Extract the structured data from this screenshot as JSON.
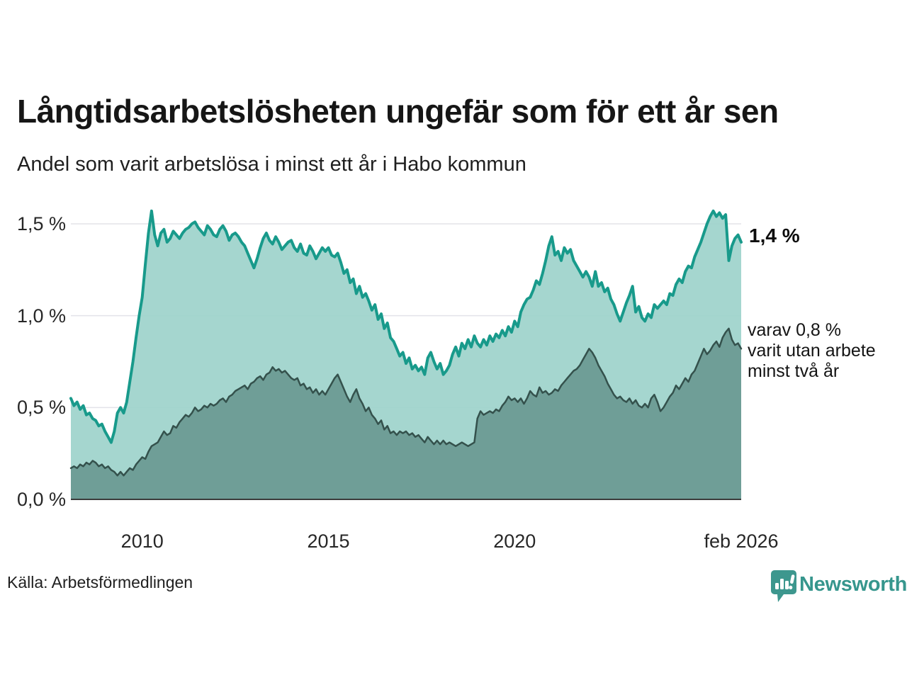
{
  "header": {
    "title": "Långtidsarbetslösheten ungefär som för ett år sen",
    "subtitle": "Andel som varit arbetslösa i minst ett år i Habo kommun"
  },
  "chart_data": {
    "type": "area",
    "unit": "%",
    "x_start": "2008-02",
    "x_end": "2026-02",
    "interval": "monthly",
    "ylim": [
      0,
      1.62
    ],
    "grid": true,
    "yticks": [
      {
        "label": "0,0 %",
        "value": 0
      },
      {
        "label": "0,5 %",
        "value": 0.5
      },
      {
        "label": "1,0 %",
        "value": 1.0
      },
      {
        "label": "1,5 %",
        "value": 1.5
      }
    ],
    "xticks": [
      {
        "label": "2010",
        "month_index": 23
      },
      {
        "label": "2015",
        "month_index": 83
      },
      {
        "label": "2020",
        "month_index": 143
      },
      {
        "label": "feb 2026",
        "month_index": 216
      }
    ],
    "series": [
      {
        "name": "Andel som varit arbetslösa i minst ett år",
        "line_color": "#189a8b",
        "fill_color": "#9ed3cb",
        "line_width": 4,
        "values": [
          0.55,
          0.51,
          0.53,
          0.49,
          0.51,
          0.46,
          0.47,
          0.44,
          0.43,
          0.4,
          0.41,
          0.37,
          0.34,
          0.31,
          0.37,
          0.47,
          0.5,
          0.47,
          0.53,
          0.64,
          0.75,
          0.88,
          1.0,
          1.1,
          1.28,
          1.45,
          1.57,
          1.44,
          1.38,
          1.45,
          1.47,
          1.4,
          1.42,
          1.46,
          1.44,
          1.42,
          1.45,
          1.47,
          1.48,
          1.5,
          1.51,
          1.48,
          1.46,
          1.44,
          1.49,
          1.47,
          1.44,
          1.43,
          1.47,
          1.49,
          1.46,
          1.41,
          1.44,
          1.45,
          1.43,
          1.4,
          1.38,
          1.34,
          1.3,
          1.26,
          1.31,
          1.37,
          1.42,
          1.45,
          1.41,
          1.39,
          1.43,
          1.4,
          1.36,
          1.38,
          1.4,
          1.41,
          1.37,
          1.35,
          1.39,
          1.34,
          1.33,
          1.38,
          1.35,
          1.31,
          1.34,
          1.37,
          1.35,
          1.37,
          1.33,
          1.32,
          1.34,
          1.29,
          1.23,
          1.25,
          1.18,
          1.2,
          1.12,
          1.16,
          1.1,
          1.12,
          1.08,
          1.03,
          1.06,
          0.98,
          1.01,
          0.93,
          0.96,
          0.88,
          0.86,
          0.82,
          0.78,
          0.8,
          0.74,
          0.77,
          0.71,
          0.73,
          0.7,
          0.72,
          0.68,
          0.77,
          0.8,
          0.75,
          0.71,
          0.74,
          0.68,
          0.7,
          0.73,
          0.79,
          0.83,
          0.78,
          0.85,
          0.82,
          0.87,
          0.83,
          0.89,
          0.85,
          0.83,
          0.87,
          0.84,
          0.89,
          0.86,
          0.9,
          0.88,
          0.92,
          0.89,
          0.94,
          0.91,
          0.97,
          0.94,
          1.02,
          1.06,
          1.09,
          1.1,
          1.14,
          1.19,
          1.17,
          1.23,
          1.3,
          1.38,
          1.43,
          1.33,
          1.35,
          1.3,
          1.37,
          1.34,
          1.36,
          1.3,
          1.27,
          1.24,
          1.21,
          1.24,
          1.21,
          1.16,
          1.24,
          1.16,
          1.18,
          1.13,
          1.15,
          1.09,
          1.06,
          1.01,
          0.97,
          1.02,
          1.07,
          1.11,
          1.16,
          1.02,
          1.05,
          0.99,
          0.97,
          1.01,
          0.99,
          1.06,
          1.04,
          1.06,
          1.08,
          1.06,
          1.12,
          1.11,
          1.17,
          1.2,
          1.18,
          1.24,
          1.27,
          1.26,
          1.32,
          1.36,
          1.4,
          1.45,
          1.5,
          1.54,
          1.57,
          1.54,
          1.56,
          1.53,
          1.55,
          1.3,
          1.38,
          1.42,
          1.44,
          1.4
        ]
      },
      {
        "name": "varav utan arbete minst två år",
        "line_color": "#34514c",
        "fill_color": "#6f9e97",
        "line_width": 2.5,
        "values": [
          0.17,
          0.18,
          0.17,
          0.19,
          0.18,
          0.2,
          0.19,
          0.21,
          0.2,
          0.18,
          0.19,
          0.17,
          0.18,
          0.16,
          0.15,
          0.13,
          0.15,
          0.13,
          0.15,
          0.17,
          0.16,
          0.19,
          0.21,
          0.23,
          0.22,
          0.26,
          0.29,
          0.3,
          0.31,
          0.34,
          0.37,
          0.35,
          0.36,
          0.4,
          0.39,
          0.42,
          0.44,
          0.46,
          0.45,
          0.47,
          0.5,
          0.48,
          0.49,
          0.51,
          0.5,
          0.52,
          0.51,
          0.52,
          0.54,
          0.55,
          0.53,
          0.56,
          0.57,
          0.59,
          0.6,
          0.61,
          0.62,
          0.6,
          0.63,
          0.64,
          0.66,
          0.67,
          0.65,
          0.68,
          0.69,
          0.72,
          0.7,
          0.71,
          0.69,
          0.7,
          0.68,
          0.66,
          0.65,
          0.66,
          0.62,
          0.63,
          0.6,
          0.61,
          0.58,
          0.6,
          0.57,
          0.59,
          0.57,
          0.6,
          0.63,
          0.66,
          0.68,
          0.64,
          0.6,
          0.56,
          0.53,
          0.57,
          0.6,
          0.55,
          0.52,
          0.48,
          0.5,
          0.46,
          0.44,
          0.41,
          0.43,
          0.38,
          0.4,
          0.36,
          0.37,
          0.35,
          0.37,
          0.36,
          0.37,
          0.35,
          0.36,
          0.34,
          0.35,
          0.33,
          0.31,
          0.34,
          0.32,
          0.3,
          0.32,
          0.3,
          0.32,
          0.3,
          0.31,
          0.3,
          0.29,
          0.3,
          0.31,
          0.3,
          0.29,
          0.3,
          0.31,
          0.44,
          0.48,
          0.46,
          0.47,
          0.48,
          0.47,
          0.49,
          0.48,
          0.51,
          0.53,
          0.56,
          0.54,
          0.55,
          0.53,
          0.55,
          0.52,
          0.55,
          0.59,
          0.57,
          0.56,
          0.61,
          0.58,
          0.59,
          0.57,
          0.58,
          0.6,
          0.59,
          0.62,
          0.64,
          0.66,
          0.68,
          0.7,
          0.71,
          0.73,
          0.76,
          0.79,
          0.82,
          0.8,
          0.77,
          0.73,
          0.7,
          0.67,
          0.63,
          0.6,
          0.57,
          0.55,
          0.56,
          0.54,
          0.53,
          0.55,
          0.52,
          0.54,
          0.51,
          0.5,
          0.52,
          0.5,
          0.55,
          0.57,
          0.53,
          0.48,
          0.5,
          0.53,
          0.56,
          0.58,
          0.62,
          0.6,
          0.63,
          0.66,
          0.64,
          0.68,
          0.7,
          0.74,
          0.78,
          0.82,
          0.79,
          0.81,
          0.84,
          0.86,
          0.83,
          0.88,
          0.91,
          0.93,
          0.87,
          0.84,
          0.85,
          0.82
        ]
      }
    ],
    "end_labels": {
      "primary": "1,4 %",
      "secondary": "varav 0,8 %\nvarit utan arbete\nminst två år"
    },
    "colors": {
      "grid": "#e3e3e9",
      "axis": "#3c3c3c",
      "brand_teal": "#36968d"
    }
  },
  "footer": {
    "source": "Källa: Arbetsförmedlingen",
    "brand": "Newsworthy"
  }
}
